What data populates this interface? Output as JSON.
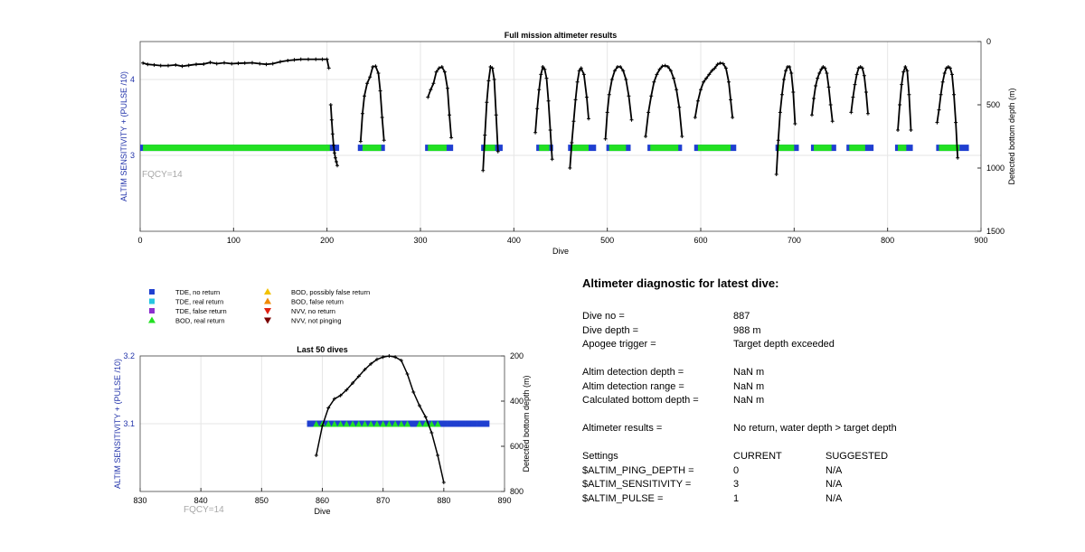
{
  "top_chart": {
    "title": "Full mission altimeter results",
    "xlabel": "Dive",
    "ylabel_left": "ALTIM SENSITIVITY + (PULSE /10)",
    "ylabel_right": "Detected bottom depth (m)",
    "left_ticks": [
      "3",
      "4"
    ],
    "right_ticks": [
      "0",
      "500",
      "1000",
      "1500"
    ],
    "x_ticks": [
      "0",
      "100",
      "200",
      "300",
      "400",
      "500",
      "600",
      "700",
      "800",
      "900"
    ],
    "annotation": "FQCY=14"
  },
  "bottom_chart": {
    "title": "Last 50 dives",
    "xlabel": "Dive",
    "ylabel_left": "ALTIM SENSITIVITY + (PULSE /10)",
    "ylabel_right": "Detected bottom depth (m)",
    "left_ticks": [
      "3.1",
      "3.2"
    ],
    "right_ticks": [
      "200",
      "400",
      "600",
      "800"
    ],
    "x_ticks": [
      "830",
      "840",
      "850",
      "860",
      "870",
      "880",
      "890"
    ],
    "annotation": "FQCY=14"
  },
  "legend": [
    {
      "label": "TDE, no return",
      "marker": "square",
      "color": "#1f3fd0"
    },
    {
      "label": "TDE, real return",
      "marker": "square",
      "color": "#27c6e0"
    },
    {
      "label": "TDE, false return",
      "marker": "square",
      "color": "#8c2fcf"
    },
    {
      "label": "BOD, real return",
      "marker": "triangle",
      "color": "#22e022"
    },
    {
      "label": "BOD, possibly false return",
      "marker": "triangle",
      "color": "#f2c200"
    },
    {
      "label": "BOD, false return",
      "marker": "triangle",
      "color": "#f08a00"
    },
    {
      "label": "NVV, no return",
      "marker": "triangle-down",
      "color": "#e02010"
    },
    {
      "label": "NVV, not pinging",
      "marker": "triangle-down",
      "color": "#7a0000"
    }
  ],
  "diagnostic": {
    "title": "Altimeter diagnostic for latest dive:",
    "dive_no_label": "Dive no =",
    "dive_no": "887",
    "dive_depth_label": "Dive depth =",
    "dive_depth": "988 m",
    "apogee_label": "Apogee trigger =",
    "apogee": "Target depth exceeded",
    "det_depth_label": "Altim detection depth =",
    "det_depth": "NaN m",
    "det_range_label": "Altim detection range =",
    "det_range": "NaN m",
    "calc_depth_label": "Calculated bottom depth =",
    "calc_depth": "NaN m",
    "results_label": "Altimeter results =",
    "results": "No return, water depth > target depth",
    "settings_label": "Settings",
    "current_label": "CURRENT",
    "suggested_label": "SUGGESTED",
    "settings": [
      {
        "name": "$ALTIM_PING_DEPTH =",
        "current": "0",
        "suggested": "N/A"
      },
      {
        "name": "$ALTIM_SENSITIVITY =",
        "current": "3",
        "suggested": "N/A"
      },
      {
        "name": "$ALTIM_PULSE =",
        "current": "1",
        "suggested": "N/A"
      }
    ]
  },
  "chart_data": [
    {
      "type": "scatter",
      "title": "Full mission altimeter results",
      "xlabel": "Dive",
      "ylabel": "ALTIM SENSITIVITY + (PULSE /10)",
      "y2label": "Detected bottom depth (m)",
      "xlim": [
        0,
        900
      ],
      "ylim": [
        2,
        4.5
      ],
      "y2lim": [
        1500,
        0
      ],
      "y2_reversed": true,
      "grid": true,
      "setting_markers": [
        {
          "series": "TDE, no return",
          "value": 3.1,
          "x_ranges": [
            [
              0,
              213
            ],
            [
              233,
              262
            ],
            [
              305,
              335
            ],
            [
              365,
              388
            ],
            [
              424,
              442
            ],
            [
              458,
              488
            ],
            [
              499,
              525
            ],
            [
              543,
              580
            ],
            [
              593,
              638
            ],
            [
              680,
              705
            ],
            [
              718,
              745
            ],
            [
              756,
              785
            ],
            [
              808,
              827
            ],
            [
              852,
              887
            ]
          ]
        },
        {
          "series": "BOD, real return",
          "value": 3.1,
          "x_ranges": [
            [
              3,
              203
            ],
            [
              238,
              258
            ],
            [
              308,
              328
            ],
            [
              368,
              380
            ],
            [
              427,
              438
            ],
            [
              461,
              480
            ],
            [
              502,
              520
            ],
            [
              546,
              576
            ],
            [
              597,
              632
            ],
            [
              683,
              700
            ],
            [
              721,
              740
            ],
            [
              759,
              776
            ],
            [
              811,
              820
            ],
            [
              855,
              877
            ]
          ]
        }
      ],
      "bottom_depth_series": {
        "name": "Detected bottom depth",
        "segments": [
          {
            "x": [
              3,
              8,
              15,
              22,
              30,
              38,
              45,
              52,
              60,
              68,
              75,
              82,
              90,
              98,
              105,
              112,
              120,
              128,
              135,
              142,
              150,
              158,
              165,
              172,
              180,
              188,
              195,
              200,
              202
            ],
            "y": [
              170,
              180,
              185,
              190,
              190,
              185,
              195,
              188,
              180,
              178,
              165,
              175,
              168,
              175,
              172,
              170,
              168,
              175,
              180,
              175,
              160,
              150,
              145,
              140,
              140,
              140,
              140,
              140,
              210
            ]
          },
          {
            "x": [
              204,
              205,
              206,
              207,
              208,
              209,
              210,
              211
            ],
            "y": [
              500,
              620,
              730,
              820,
              880,
              920,
              950,
              980
            ]
          },
          {
            "x": [
              236,
              238,
              240,
              243,
              246,
              249,
              252,
              255,
              257,
              259,
              261
            ],
            "y": [
              790,
              570,
              430,
              330,
              280,
              200,
              195,
              250,
              390,
              600,
              780
            ]
          },
          {
            "x": [
              308,
              311,
              314,
              317,
              320,
              323,
              326,
              329,
              331,
              333
            ],
            "y": [
              440,
              380,
              330,
              240,
              210,
              200,
              240,
              370,
              580,
              760
            ]
          },
          {
            "x": [
              367,
              369,
              371,
              373,
              375,
              377,
              379,
              381,
              383
            ],
            "y": [
              1020,
              740,
              480,
              310,
              200,
              210,
              300,
              580,
              870
            ]
          },
          {
            "x": [
              423,
              425,
              427,
              429,
              431,
              433,
              435,
              437,
              439,
              441
            ],
            "y": [
              720,
              530,
              380,
              260,
              200,
              220,
              290,
              470,
              700,
              930
            ]
          },
          {
            "x": [
              460,
              462,
              464,
              466,
              468,
              470,
              472,
              475,
              478,
              480
            ],
            "y": [
              1000,
              800,
              630,
              460,
              320,
              230,
              210,
              260,
              440,
              610
            ]
          },
          {
            "x": [
              498,
              500,
              502,
              505,
              508,
              511,
              514,
              517,
              520,
              523,
              526
            ],
            "y": [
              770,
              560,
              420,
              300,
              230,
              200,
              200,
              230,
              300,
              430,
              620
            ]
          },
          {
            "x": [
              541,
              544,
              547,
              550,
              553,
              556,
              559,
              562,
              565,
              568,
              571,
              574,
              577,
              580
            ],
            "y": [
              750,
              560,
              430,
              320,
              260,
              220,
              195,
              190,
              200,
              230,
              290,
              380,
              520,
              750
            ]
          },
          {
            "x": [
              594,
              597,
              600,
              603,
              606,
              609,
              612,
              615,
              618,
              621,
              624,
              627,
              630,
              632,
              634
            ],
            "y": [
              600,
              470,
              380,
              320,
              290,
              260,
              230,
              210,
              180,
              170,
              175,
              210,
              320,
              460,
              600
            ]
          },
          {
            "x": [
              681,
              683,
              685,
              687,
              689,
              691,
              693,
              695,
              697,
              699,
              701
            ],
            "y": [
              1050,
              780,
              560,
              420,
              300,
              230,
              200,
              200,
              250,
              400,
              650
            ]
          },
          {
            "x": [
              719,
              721,
              723,
              725,
              727,
              729,
              731,
              733,
              735,
              737,
              739,
              741
            ],
            "y": [
              580,
              450,
              350,
              290,
              250,
              220,
              200,
              210,
              250,
              360,
              500,
              630
            ]
          },
          {
            "x": [
              761,
              763,
              765,
              767,
              769,
              771,
              773,
              775,
              777,
              779
            ],
            "y": [
              560,
              440,
              340,
              260,
              210,
              200,
              210,
              270,
              400,
              570
            ]
          },
          {
            "x": [
              811,
              813,
              815,
              817,
              819,
              821,
              823,
              825
            ],
            "y": [
              700,
              500,
              340,
              240,
              200,
              230,
              420,
              700
            ]
          },
          {
            "x": [
              853,
              855,
              857,
              859,
              861,
              863,
              865,
              867,
              869,
              871,
              873,
              875
            ],
            "y": [
              640,
              540,
              420,
              320,
              250,
              210,
              200,
              210,
              260,
              420,
              640,
              920
            ]
          }
        ]
      }
    },
    {
      "type": "scatter",
      "title": "Last 50 dives",
      "xlabel": "Dive",
      "ylabel": "ALTIM SENSITIVITY + (PULSE /10)",
      "y2label": "Detected bottom depth (m)",
      "xlim": [
        830,
        890
      ],
      "ylim": [
        3.0,
        3.2
      ],
      "y2lim": [
        800,
        200
      ],
      "y2_reversed": true,
      "grid": true,
      "setting_markers": [
        {
          "series": "TDE, no return",
          "value": 3.1,
          "x": [
            858,
            859,
            860,
            861,
            862,
            863,
            864,
            865,
            866,
            867,
            868,
            869,
            870,
            871,
            872,
            873,
            874,
            875,
            876,
            877,
            878,
            879,
            880,
            881,
            882,
            883,
            884,
            885,
            886,
            887
          ]
        },
        {
          "series": "BOD, real return",
          "value": 3.1,
          "x": [
            859,
            860,
            861,
            862,
            863,
            864,
            865,
            866,
            867,
            868,
            869,
            870,
            871,
            872,
            873,
            874,
            876,
            877,
            878,
            879
          ]
        }
      ],
      "bottom_depth_series": {
        "name": "Detected bottom depth",
        "x": [
          859,
          860,
          861,
          862,
          863,
          864,
          865,
          866,
          867,
          868,
          869,
          870,
          871,
          872,
          873,
          874,
          875,
          876,
          877,
          878,
          879,
          880
        ],
        "y": [
          640,
          510,
          430,
          390,
          375,
          350,
          320,
          290,
          260,
          235,
          215,
          205,
          200,
          205,
          220,
          280,
          360,
          420,
          470,
          540,
          640,
          760
        ]
      }
    }
  ]
}
